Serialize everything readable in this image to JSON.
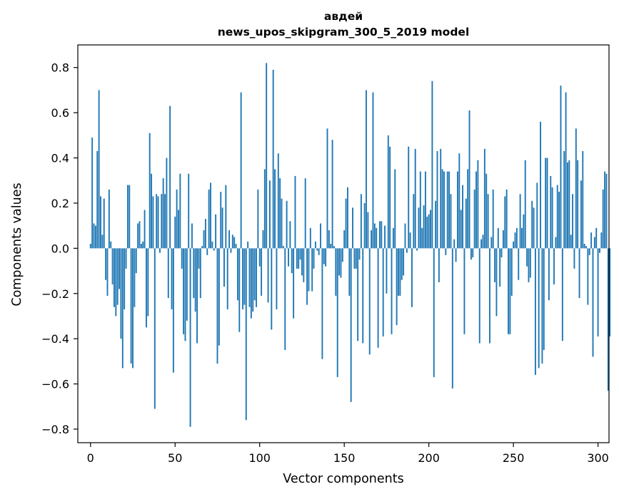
{
  "chart_data": {
    "type": "bar",
    "title": [
      "авдей",
      "news_upos_skipgram_300_5_2019 model"
    ],
    "xlabel": "Vector components",
    "ylabel": "Components values",
    "xlim": [
      -7.5,
      306.5
    ],
    "ylim": [
      -0.86,
      0.9
    ],
    "xticks": [
      0,
      50,
      100,
      150,
      200,
      250,
      300
    ],
    "xtick_labels": [
      "0",
      "50",
      "100",
      "150",
      "200",
      "250",
      "300"
    ],
    "yticks": [
      0.8,
      0.6,
      0.4,
      0.2,
      0.0,
      -0.2,
      -0.4,
      -0.6,
      -0.8
    ],
    "ytick_labels": [
      "0.8",
      "0.6",
      "0.4",
      "0.2",
      "0.0",
      "−0.2",
      "−0.4",
      "−0.6",
      "−0.8"
    ],
    "grid": false,
    "bar_color": "#1f77b4",
    "values": [
      0.02,
      0.49,
      0.11,
      0.1,
      0.43,
      0.7,
      0.23,
      0.06,
      0.22,
      -0.14,
      -0.21,
      0.26,
      0.03,
      -0.16,
      -0.26,
      -0.3,
      -0.25,
      -0.18,
      -0.4,
      -0.53,
      -0.27,
      -0.09,
      0.28,
      0.28,
      -0.51,
      -0.53,
      -0.26,
      -0.11,
      0.11,
      0.12,
      0.02,
      0.03,
      0.17,
      -0.35,
      -0.3,
      0.51,
      0.33,
      0.23,
      -0.71,
      0.24,
      0.23,
      -0.02,
      0.24,
      0.31,
      0.24,
      0.4,
      -0.22,
      0.63,
      -0.27,
      -0.55,
      0.14,
      0.26,
      0.17,
      0.33,
      -0.09,
      -0.38,
      -0.41,
      -0.32,
      0.33,
      -0.79,
      0.11,
      -0.22,
      -0.28,
      -0.42,
      -0.09,
      -0.22,
      0.01,
      0.08,
      0.13,
      -0.03,
      0.26,
      0.29,
      0.03,
      -0.01,
      0.15,
      -0.51,
      -0.43,
      0.25,
      0.18,
      -0.17,
      0.28,
      -0.27,
      0.08,
      -0.02,
      0.06,
      0.05,
      0.02,
      -0.23,
      -0.37,
      0.69,
      -0.27,
      -0.25,
      -0.76,
      0.03,
      -0.26,
      -0.31,
      -0.28,
      -0.23,
      -0.26,
      0.26,
      -0.08,
      -0.21,
      0.08,
      0.35,
      0.82,
      -0.24,
      0.3,
      -0.36,
      0.79,
      0.35,
      -0.27,
      0.42,
      0.31,
      0.22,
      0.01,
      -0.45,
      0.21,
      -0.08,
      0.12,
      -0.11,
      -0.31,
      0.32,
      -0.09,
      -0.09,
      -0.05,
      -0.12,
      -0.15,
      0.31,
      -0.25,
      -0.19,
      0.09,
      -0.19,
      -0.09,
      0.03,
      -0.01,
      -0.03,
      0.11,
      -0.49,
      -0.07,
      -0.08,
      0.53,
      0.08,
      0.02,
      0.48,
      0.01,
      -0.21,
      -0.57,
      -0.12,
      -0.13,
      -0.06,
      0.08,
      0.22,
      0.27,
      -0.21,
      -0.68,
      0.18,
      -0.09,
      -0.09,
      -0.41,
      -0.05,
      0.24,
      -0.42,
      0.2,
      0.7,
      0.16,
      -0.47,
      0.08,
      0.69,
      0.11,
      0.09,
      -0.44,
      0.12,
      0.12,
      -0.39,
      0.1,
      -0.2,
      0.5,
      0.45,
      -0.38,
      0.09,
      0.35,
      -0.34,
      -0.21,
      -0.21,
      -0.14,
      -0.12,
      0.11,
      -0.02,
      0.45,
      0.07,
      -0.26,
      0.24,
      0.44,
      -0.01,
      0.18,
      0.34,
      0.09,
      0.19,
      0.34,
      0.14,
      0.15,
      0.17,
      0.74,
      -0.57,
      0.21,
      0.43,
      -0.15,
      0.44,
      0.35,
      0.34,
      -0.03,
      0.34,
      0.34,
      0.24,
      -0.62,
      0.04,
      -0.06,
      0.34,
      0.42,
      0.17,
      0.28,
      -0.38,
      0.22,
      0.35,
      0.61,
      -0.05,
      -0.04,
      0.26,
      0.34,
      0.39,
      -0.42,
      0.04,
      0.06,
      0.44,
      0.33,
      0.24,
      -0.42,
      0.05,
      0.26,
      -0.15,
      -0.3,
      0.09,
      -0.17,
      -0.04,
      0.08,
      0.23,
      0.26,
      -0.38,
      -0.38,
      -0.21,
      0.03,
      0.07,
      0.09,
      -0.14,
      0.24,
      0.09,
      0.15,
      0.39,
      -0.08,
      -0.15,
      -0.13,
      0.21,
      0.18,
      -0.56,
      0.29,
      -0.53,
      0.56,
      -0.51,
      -0.45,
      0.4,
      0.4,
      -0.23,
      0.32,
      0.27,
      -0.16,
      0.05,
      0.28,
      0.25,
      0.72,
      -0.41,
      0.43,
      0.69,
      0.38,
      0.39,
      0.06,
      0.24,
      -0.09,
      0.53,
      0.39,
      -0.22,
      0.3,
      0.43,
      0.02,
      0.01,
      -0.25,
      -0.03,
      0.07,
      -0.48,
      0.05,
      0.09,
      -0.39,
      -0.02,
      0.07,
      0.26,
      0.34,
      0.33,
      -0.63,
      -0.39
    ]
  }
}
